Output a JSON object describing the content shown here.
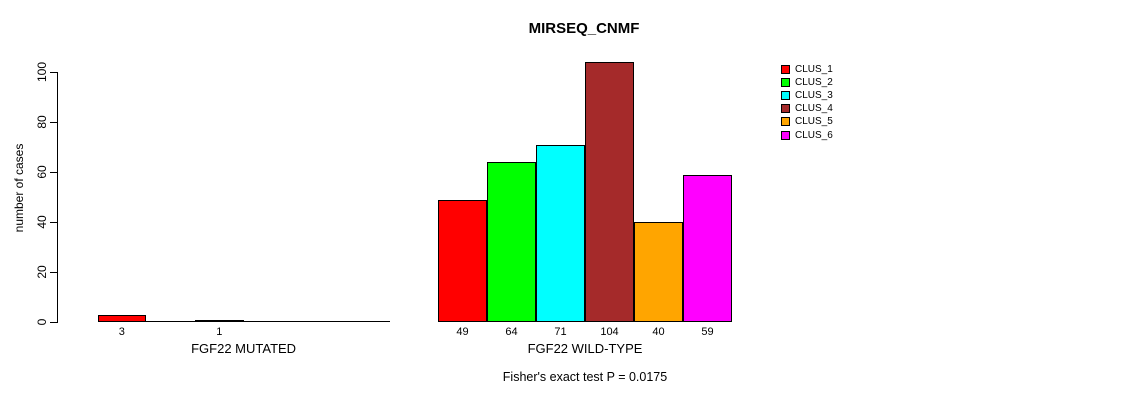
{
  "title": "MIRSEQ_CNMF",
  "y_axis": {
    "label": "number of cases",
    "ticks": [
      0,
      20,
      40,
      60,
      80,
      100
    ]
  },
  "legend": {
    "items": [
      {
        "label": "CLUS_1",
        "color": "#FF0000"
      },
      {
        "label": "CLUS_2",
        "color": "#00FF00"
      },
      {
        "label": "CLUS_3",
        "color": "#00FFFF"
      },
      {
        "label": "CLUS_4",
        "color": "#A52A2A"
      },
      {
        "label": "CLUS_5",
        "color": "#FFA500"
      },
      {
        "label": "CLUS_6",
        "color": "#FF00FF"
      }
    ]
  },
  "chart_data": {
    "type": "bar",
    "title": "MIRSEQ_CNMF",
    "ylabel": "number of cases",
    "xlabel": "",
    "ylim": [
      0,
      100
    ],
    "yticks": [
      0,
      20,
      40,
      60,
      80,
      100
    ],
    "grid": false,
    "legend_position": "right",
    "clusters": [
      "CLUS_1",
      "CLUS_2",
      "CLUS_3",
      "CLUS_4",
      "CLUS_5",
      "CLUS_6"
    ],
    "colors": [
      "#FF0000",
      "#00FF00",
      "#00FFFF",
      "#A52A2A",
      "#FFA500",
      "#FF00FF"
    ],
    "groups": [
      {
        "label": "FGF22 MUTATED",
        "values": [
          3,
          0,
          1,
          0,
          0,
          0
        ],
        "bar_labels": [
          "3",
          "",
          "1",
          "",
          "",
          ""
        ]
      },
      {
        "label": "FGF22 WILD-TYPE",
        "values": [
          49,
          64,
          71,
          104,
          40,
          59
        ],
        "bar_labels": [
          "49",
          "64",
          "71",
          "104",
          "40",
          "59"
        ]
      }
    ],
    "annotation": "Fisher's exact test P = 0.0175"
  }
}
